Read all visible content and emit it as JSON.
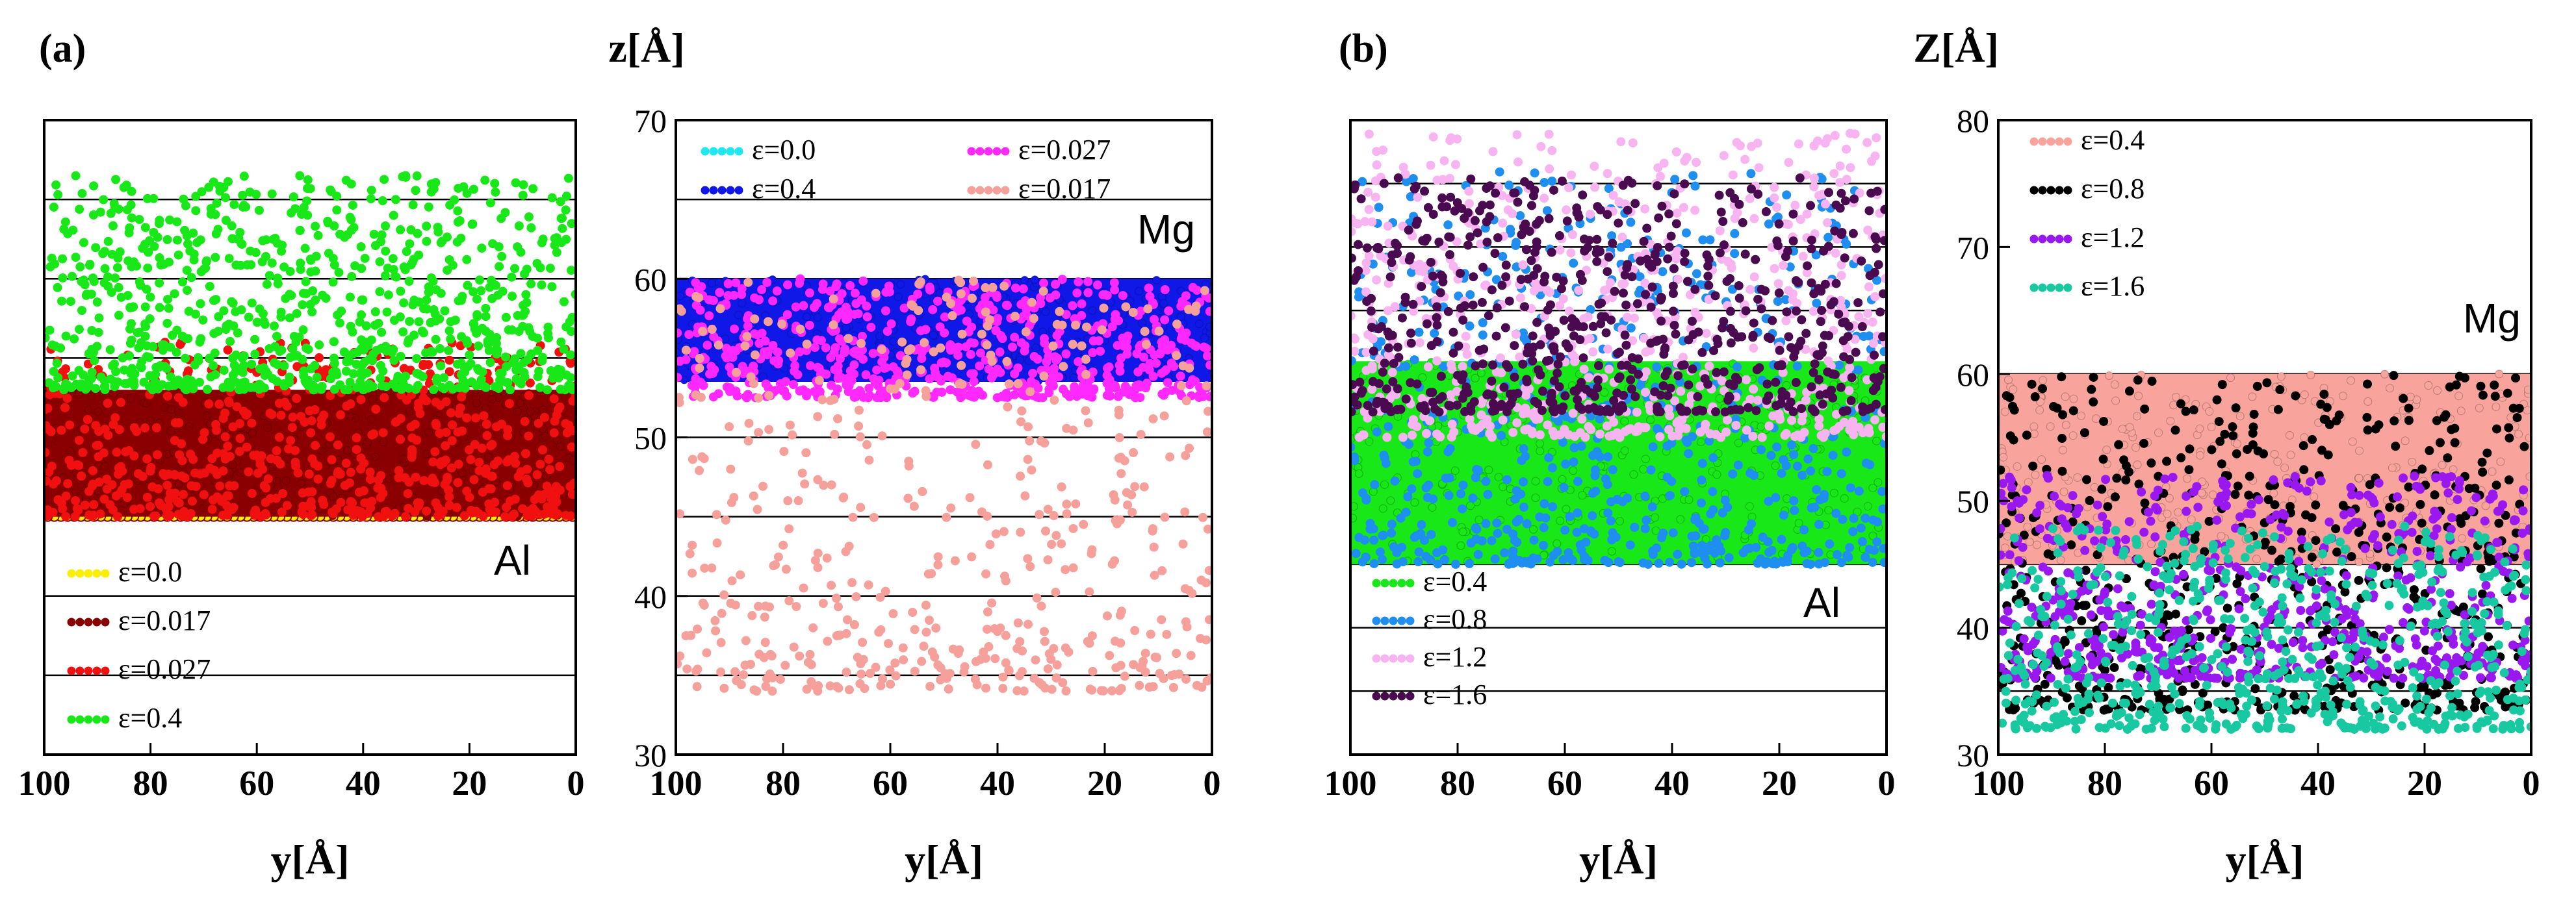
{
  "figure": {
    "panel_a_label": "(a)",
    "panel_b_label": "(b)",
    "zlabel_a": "z[Å]",
    "zlabel_b": "Z[Å]",
    "xlabel": "y[Å]"
  },
  "colors": {
    "cyan": "#20e8f0",
    "blue": "#1018e8",
    "magenta": "#ff28ff",
    "salmon": "#f5a09a",
    "yellow": "#f8f000",
    "darkred": "#8a0000",
    "red": "#f01010",
    "green": "#18e818",
    "azure": "#1e8ef0",
    "pink": "#f8b4f0",
    "plum": "#4a0a50",
    "salmonFill": "#f8a49c",
    "black": "#000000",
    "violet": "#9a18f0",
    "teal": "#18c8a0"
  },
  "chart_data": [
    {
      "id": "a_left",
      "type": "scatter",
      "title": "",
      "xlabel": "y[Å]",
      "ylabel": "",
      "xlim": [
        100,
        0
      ],
      "ylim": [
        30,
        70
      ],
      "xticks": [
        100,
        80,
        60,
        40,
        20,
        0
      ],
      "yticks": [],
      "hlines": [
        35,
        40,
        45,
        50,
        55,
        60,
        65
      ],
      "region_label": "Al",
      "legend": [
        {
          "label": "ε=0.0",
          "color": "#f8f000"
        },
        {
          "label": "ε=0.017",
          "color": "#8a0000"
        },
        {
          "label": "ε=0.027",
          "color": "#f01010"
        },
        {
          "label": "ε=0.4",
          "color": "#18e818"
        }
      ],
      "series": [
        {
          "name": "ε=0.0",
          "color": "#f8f000",
          "layer_rows": [
            45.0,
            47.0,
            49.0,
            51.0
          ],
          "approx_y_range_of_rows": [
            0,
            100
          ]
        },
        {
          "name": "ε=0.017",
          "color": "#8a0000",
          "fill_band": [
            45,
            53
          ]
        },
        {
          "name": "ε=0.027",
          "color": "#f01010",
          "scatter_band": [
            45,
            56
          ]
        },
        {
          "name": "ε=0.4",
          "color": "#18e818",
          "scatter_band": [
            53,
            66.5
          ],
          "extreme_points": [
            {
              "x": 32,
              "z": 66.5
            },
            {
              "x": 46,
              "z": 65.5
            }
          ]
        }
      ]
    },
    {
      "id": "a_right",
      "type": "scatter",
      "title": "",
      "xlabel": "y[Å]",
      "ylabel": "z[Å]",
      "xlim": [
        100,
        0
      ],
      "ylim": [
        30,
        70
      ],
      "xticks": [
        100,
        80,
        60,
        40,
        20,
        0
      ],
      "yticks": [
        30,
        40,
        50,
        60,
        70
      ],
      "hlines": [
        35,
        40,
        45,
        50,
        55,
        60,
        65
      ],
      "region_label": "Mg",
      "legend": [
        {
          "label": "ε=0.0",
          "color": "#20e8f0"
        },
        {
          "label": "ε=0.4",
          "color": "#1018e8"
        },
        {
          "label": "ε=0.027",
          "color": "#ff28ff"
        },
        {
          "label": "ε=0.017",
          "color": "#f5a09a"
        }
      ],
      "series": [
        {
          "name": "ε=0.0",
          "color": "#20e8f0",
          "layer_rows": [
            54.5,
            56.8,
            59.2
          ]
        },
        {
          "name": "ε=0.4",
          "color": "#1018e8",
          "fill_band": [
            53.5,
            60
          ]
        },
        {
          "name": "ε=0.027",
          "color": "#ff28ff",
          "scatter_band": [
            52.5,
            60
          ]
        },
        {
          "name": "ε=0.017",
          "color": "#f5a09a",
          "scatter_band": [
            34,
            60
          ],
          "extreme_points": [
            {
              "x": 82,
              "z": 34
            },
            {
              "x": 68,
              "z": 38.5
            },
            {
              "x": 2,
              "z": 41
            }
          ]
        }
      ]
    },
    {
      "id": "b_left",
      "type": "scatter",
      "title": "",
      "xlabel": "y[Å]",
      "ylabel": "",
      "xlim": [
        100,
        0
      ],
      "ylim": [
        30,
        80
      ],
      "xticks": [
        100,
        80,
        60,
        40,
        20,
        0
      ],
      "yticks": [],
      "hlines": [
        35,
        40,
        45,
        50,
        55,
        60,
        65,
        70,
        75
      ],
      "region_label": "Al",
      "legend": [
        {
          "label": "ε=0.4",
          "color": "#18e818"
        },
        {
          "label": "ε=0.8",
          "color": "#1e8ef0"
        },
        {
          "label": "ε=1.2",
          "color": "#f8b4f0"
        },
        {
          "label": "ε=1.6",
          "color": "#4a0a50"
        }
      ],
      "series": [
        {
          "name": "ε=0.4",
          "color": "#18e818",
          "fill_band": [
            45,
            61
          ]
        },
        {
          "name": "ε=0.8",
          "color": "#1e8ef0",
          "scatter_band": [
            45,
            76
          ]
        },
        {
          "name": "ε=1.2",
          "color": "#f8b4f0",
          "scatter_band": [
            55,
            79
          ]
        },
        {
          "name": "ε=1.6",
          "color": "#4a0a50",
          "scatter_band": [
            57,
            75.5
          ]
        }
      ]
    },
    {
      "id": "b_right",
      "type": "scatter",
      "title": "",
      "xlabel": "y[Å]",
      "ylabel": "Z[Å]",
      "xlim": [
        100,
        0
      ],
      "ylim": [
        30,
        80
      ],
      "xticks": [
        100,
        80,
        60,
        40,
        20,
        0
      ],
      "yticks": [
        30,
        40,
        50,
        60,
        70,
        80
      ],
      "hlines": [
        35,
        40,
        45,
        50,
        55,
        60
      ],
      "region_label": "Mg",
      "legend": [
        {
          "label": "ε=0.4",
          "color": "#f8a49c"
        },
        {
          "label": "ε=0.8",
          "color": "#000000"
        },
        {
          "label": "ε=1.2",
          "color": "#9a18f0"
        },
        {
          "label": "ε=1.6",
          "color": "#18c8a0"
        }
      ],
      "series": [
        {
          "name": "ε=0.4",
          "color": "#f8a49c",
          "fill_band": [
            45,
            60
          ]
        },
        {
          "name": "ε=0.8",
          "color": "#000000",
          "scatter_band": [
            33.5,
            60
          ]
        },
        {
          "name": "ε=1.2",
          "color": "#9a18f0",
          "scatter_band": [
            36,
            52
          ]
        },
        {
          "name": "ε=1.6",
          "color": "#18c8a0",
          "scatter_band": [
            32,
            48
          ]
        }
      ]
    }
  ]
}
